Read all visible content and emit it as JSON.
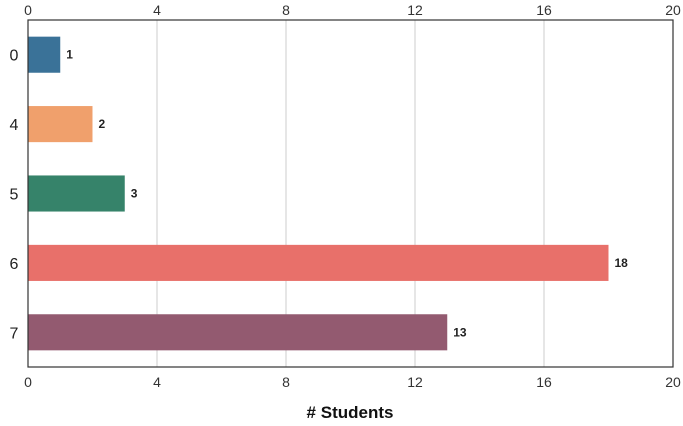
{
  "chart_data": {
    "type": "bar",
    "orientation": "horizontal",
    "categories": [
      "0",
      "4",
      "5",
      "6",
      "7"
    ],
    "values": [
      1,
      2,
      3,
      18,
      13
    ],
    "colors": [
      "#3a7298",
      "#f0a06c",
      "#36836a",
      "#e8706a",
      "#935a70"
    ],
    "xlabel": "# Students",
    "xlim": [
      0,
      20
    ],
    "xticks": [
      "0",
      "4",
      "8",
      "12",
      "16",
      "20"
    ],
    "grid": true,
    "legend": "none"
  }
}
